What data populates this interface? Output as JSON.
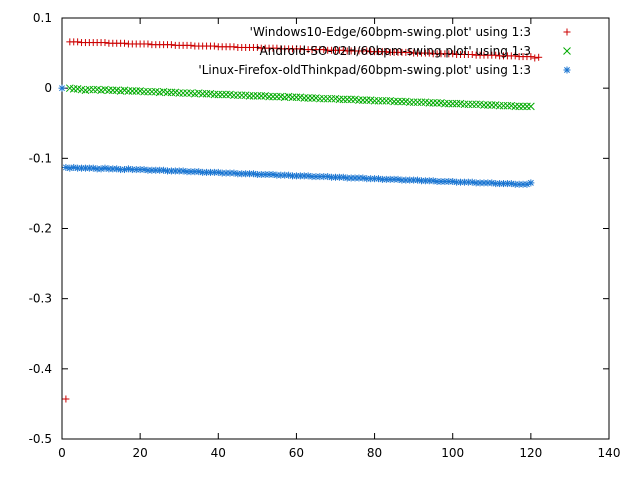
{
  "chart_data": {
    "type": "scatter",
    "title": "",
    "xlabel": "",
    "ylabel": "",
    "xlim": [
      0,
      140
    ],
    "ylim": [
      -0.5,
      0.1
    ],
    "grid": false,
    "legend_position": "top-right",
    "x_ticks": [
      {
        "value": 0,
        "label": "0"
      },
      {
        "value": 20,
        "label": "20"
      },
      {
        "value": 40,
        "label": "40"
      },
      {
        "value": 60,
        "label": "60"
      },
      {
        "value": 80,
        "label": "80"
      },
      {
        "value": 100,
        "label": "100"
      },
      {
        "value": 120,
        "label": "120"
      },
      {
        "value": 140,
        "label": "140"
      }
    ],
    "y_ticks": [
      {
        "value": 0.1,
        "label": "0.1"
      },
      {
        "value": 0,
        "label": "0"
      },
      {
        "value": -0.1,
        "label": "-0.1"
      },
      {
        "value": -0.2,
        "label": "-0.2"
      },
      {
        "value": -0.3,
        "label": "-0.3"
      },
      {
        "value": -0.4,
        "label": "-0.4"
      },
      {
        "value": -0.5,
        "label": "-0.5"
      }
    ],
    "series": [
      {
        "name": "'Windows10-Edge/60bpm-swing.plot' using 1:3",
        "marker": "plus",
        "color": "#cc0000",
        "x": [
          1,
          2,
          3,
          4,
          5,
          6,
          7,
          8,
          9,
          10,
          11,
          12,
          13,
          14,
          15,
          16,
          17,
          18,
          19,
          20,
          21,
          22,
          23,
          24,
          25,
          26,
          27,
          28,
          29,
          30,
          31,
          32,
          33,
          34,
          35,
          36,
          37,
          38,
          39,
          40,
          41,
          42,
          43,
          44,
          45,
          46,
          47,
          48,
          49,
          50,
          51,
          52,
          53,
          54,
          55,
          56,
          57,
          58,
          59,
          60,
          61,
          62,
          63,
          64,
          65,
          66,
          67,
          68,
          69,
          70,
          71,
          72,
          73,
          74,
          75,
          76,
          77,
          78,
          79,
          80,
          81,
          82,
          83,
          84,
          85,
          86,
          87,
          88,
          89,
          90,
          91,
          92,
          93,
          94,
          95,
          96,
          97,
          98,
          99,
          100,
          101,
          102,
          103,
          104,
          105,
          106,
          107,
          108,
          109,
          110,
          111,
          112,
          113,
          114,
          115,
          116,
          117,
          118,
          119,
          120,
          121,
          122
        ],
        "y": [
          -0.443,
          0.066,
          0.066,
          0.066,
          0.065,
          0.065,
          0.065,
          0.065,
          0.065,
          0.065,
          0.065,
          0.064,
          0.064,
          0.064,
          0.064,
          0.064,
          0.063,
          0.063,
          0.063,
          0.063,
          0.063,
          0.063,
          0.062,
          0.062,
          0.062,
          0.062,
          0.062,
          0.062,
          0.061,
          0.061,
          0.061,
          0.061,
          0.061,
          0.06,
          0.06,
          0.06,
          0.06,
          0.06,
          0.06,
          0.059,
          0.059,
          0.059,
          0.059,
          0.059,
          0.058,
          0.058,
          0.058,
          0.058,
          0.058,
          0.058,
          0.057,
          0.057,
          0.057,
          0.057,
          0.057,
          0.056,
          0.056,
          0.056,
          0.056,
          0.056,
          0.056,
          0.055,
          0.055,
          0.055,
          0.055,
          0.055,
          0.055,
          0.054,
          0.054,
          0.054,
          0.054,
          0.054,
          0.053,
          0.053,
          0.053,
          0.053,
          0.053,
          0.053,
          0.052,
          0.052,
          0.052,
          0.052,
          0.052,
          0.051,
          0.051,
          0.051,
          0.051,
          0.051,
          0.051,
          0.05,
          0.05,
          0.05,
          0.05,
          0.05,
          0.049,
          0.049,
          0.049,
          0.049,
          0.049,
          0.049,
          0.048,
          0.048,
          0.048,
          0.048,
          0.048,
          0.047,
          0.047,
          0.047,
          0.047,
          0.047,
          0.047,
          0.046,
          0.046,
          0.046,
          0.046,
          0.046,
          0.045,
          0.045,
          0.045,
          0.045,
          0.043,
          0.044
        ]
      },
      {
        "name": "'Android-SO-02H/60bpm-swing.plot' using 1:3",
        "marker": "cross",
        "color": "#00aa00",
        "x": [
          2,
          3,
          4,
          5,
          6,
          7,
          8,
          9,
          10,
          11,
          12,
          13,
          14,
          15,
          16,
          17,
          18,
          19,
          20,
          21,
          22,
          23,
          24,
          25,
          26,
          27,
          28,
          29,
          30,
          31,
          32,
          33,
          34,
          35,
          36,
          37,
          38,
          39,
          40,
          41,
          42,
          43,
          44,
          45,
          46,
          47,
          48,
          49,
          50,
          51,
          52,
          53,
          54,
          55,
          56,
          57,
          58,
          59,
          60,
          61,
          62,
          63,
          64,
          65,
          66,
          67,
          68,
          69,
          70,
          71,
          72,
          73,
          74,
          75,
          76,
          77,
          78,
          79,
          80,
          81,
          82,
          83,
          84,
          85,
          86,
          87,
          88,
          89,
          90,
          91,
          92,
          93,
          94,
          95,
          96,
          97,
          98,
          99,
          100,
          101,
          102,
          103,
          104,
          105,
          106,
          107,
          108,
          109,
          110,
          111,
          112,
          113,
          114,
          115,
          116,
          117,
          118,
          119,
          120
        ],
        "y": [
          0,
          -0.001,
          -0.001,
          -0.002,
          -0.003,
          -0.002,
          -0.002,
          -0.002,
          -0.003,
          -0.002,
          -0.003,
          -0.003,
          -0.003,
          -0.004,
          -0.003,
          -0.004,
          -0.004,
          -0.004,
          -0.004,
          -0.005,
          -0.005,
          -0.005,
          -0.005,
          -0.006,
          -0.005,
          -0.006,
          -0.006,
          -0.006,
          -0.007,
          -0.007,
          -0.007,
          -0.007,
          -0.008,
          -0.007,
          -0.008,
          -0.008,
          -0.008,
          -0.009,
          -0.009,
          -0.009,
          -0.009,
          -0.009,
          -0.01,
          -0.01,
          -0.01,
          -0.01,
          -0.011,
          -0.011,
          -0.011,
          -0.011,
          -0.011,
          -0.012,
          -0.012,
          -0.012,
          -0.012,
          -0.013,
          -0.012,
          -0.013,
          -0.013,
          -0.013,
          -0.014,
          -0.014,
          -0.014,
          -0.014,
          -0.015,
          -0.015,
          -0.015,
          -0.015,
          -0.015,
          -0.016,
          -0.016,
          -0.016,
          -0.016,
          -0.016,
          -0.017,
          -0.017,
          -0.017,
          -0.017,
          -0.018,
          -0.018,
          -0.018,
          -0.018,
          -0.018,
          -0.019,
          -0.019,
          -0.019,
          -0.019,
          -0.02,
          -0.02,
          -0.02,
          -0.02,
          -0.02,
          -0.021,
          -0.021,
          -0.021,
          -0.021,
          -0.022,
          -0.022,
          -0.022,
          -0.022,
          -0.022,
          -0.023,
          -0.023,
          -0.023,
          -0.023,
          -0.023,
          -0.024,
          -0.024,
          -0.024,
          -0.024,
          -0.025,
          -0.025,
          -0.025,
          -0.025,
          -0.026,
          -0.026,
          -0.026,
          -0.026,
          -0.026
        ]
      },
      {
        "name": "'Linux-Firefox-oldThinkpad/60bpm-swing.plot' using 1:3",
        "marker": "star",
        "color": "#1a75d1",
        "x": [
          0,
          1,
          2,
          3,
          4,
          5,
          6,
          7,
          8,
          9,
          10,
          11,
          12,
          13,
          14,
          15,
          16,
          17,
          18,
          19,
          20,
          21,
          22,
          23,
          24,
          25,
          26,
          27,
          28,
          29,
          30,
          31,
          32,
          33,
          34,
          35,
          36,
          37,
          38,
          39,
          40,
          41,
          42,
          43,
          44,
          45,
          46,
          47,
          48,
          49,
          50,
          51,
          52,
          53,
          54,
          55,
          56,
          57,
          58,
          59,
          60,
          61,
          62,
          63,
          64,
          65,
          66,
          67,
          68,
          69,
          70,
          71,
          72,
          73,
          74,
          75,
          76,
          77,
          78,
          79,
          80,
          81,
          82,
          83,
          84,
          85,
          86,
          87,
          88,
          89,
          90,
          91,
          92,
          93,
          94,
          95,
          96,
          97,
          98,
          99,
          100,
          101,
          102,
          103,
          104,
          105,
          106,
          107,
          108,
          109,
          110,
          111,
          112,
          113,
          114,
          115,
          116,
          117,
          118,
          119,
          120
        ],
        "y": [
          0,
          -0.113,
          -0.114,
          -0.113,
          -0.114,
          -0.114,
          -0.114,
          -0.114,
          -0.114,
          -0.115,
          -0.115,
          -0.114,
          -0.115,
          -0.115,
          -0.115,
          -0.116,
          -0.116,
          -0.115,
          -0.116,
          -0.116,
          -0.116,
          -0.116,
          -0.117,
          -0.117,
          -0.117,
          -0.117,
          -0.117,
          -0.118,
          -0.118,
          -0.118,
          -0.118,
          -0.118,
          -0.119,
          -0.119,
          -0.119,
          -0.119,
          -0.12,
          -0.12,
          -0.12,
          -0.12,
          -0.12,
          -0.121,
          -0.121,
          -0.121,
          -0.121,
          -0.122,
          -0.122,
          -0.122,
          -0.122,
          -0.122,
          -0.123,
          -0.123,
          -0.123,
          -0.123,
          -0.123,
          -0.124,
          -0.124,
          -0.124,
          -0.124,
          -0.125,
          -0.125,
          -0.125,
          -0.125,
          -0.125,
          -0.126,
          -0.126,
          -0.126,
          -0.126,
          -0.126,
          -0.127,
          -0.127,
          -0.127,
          -0.127,
          -0.128,
          -0.128,
          -0.128,
          -0.128,
          -0.128,
          -0.129,
          -0.129,
          -0.129,
          -0.129,
          -0.13,
          -0.13,
          -0.13,
          -0.13,
          -0.13,
          -0.131,
          -0.131,
          -0.131,
          -0.131,
          -0.131,
          -0.132,
          -0.132,
          -0.132,
          -0.132,
          -0.133,
          -0.133,
          -0.133,
          -0.133,
          -0.133,
          -0.134,
          -0.134,
          -0.134,
          -0.134,
          -0.134,
          -0.135,
          -0.135,
          -0.135,
          -0.135,
          -0.135,
          -0.136,
          -0.136,
          -0.136,
          -0.136,
          -0.136,
          -0.137,
          -0.137,
          -0.137,
          -0.137,
          -0.135
        ]
      }
    ]
  }
}
